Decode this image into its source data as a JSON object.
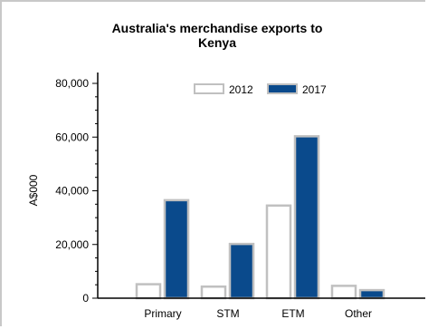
{
  "chart_data": {
    "type": "bar",
    "title": "Australia's merchandise exports to Kenya",
    "title_lines": [
      "Australia's merchandise exports to",
      "Kenya"
    ],
    "ylabel": "A$000",
    "xlabel": "",
    "categories": [
      "Primary",
      "STM",
      "ETM",
      "Other"
    ],
    "series": [
      {
        "name": "2012",
        "values": [
          5200,
          4300,
          34500,
          4600
        ],
        "color": "#ffffff",
        "stroke": "#c0c0c0"
      },
      {
        "name": "2017",
        "values": [
          36500,
          20200,
          60300,
          3000
        ],
        "color": "#0a4a8c",
        "stroke": "#c0c0c0"
      }
    ],
    "ylim": [
      0,
      80000
    ],
    "yticks": [
      0,
      20000,
      40000,
      60000,
      80000
    ],
    "ytick_labels": [
      "0",
      "20,000",
      "40,000",
      "60,000",
      "80,000"
    ],
    "legend_position": "top-center",
    "grid": false
  }
}
